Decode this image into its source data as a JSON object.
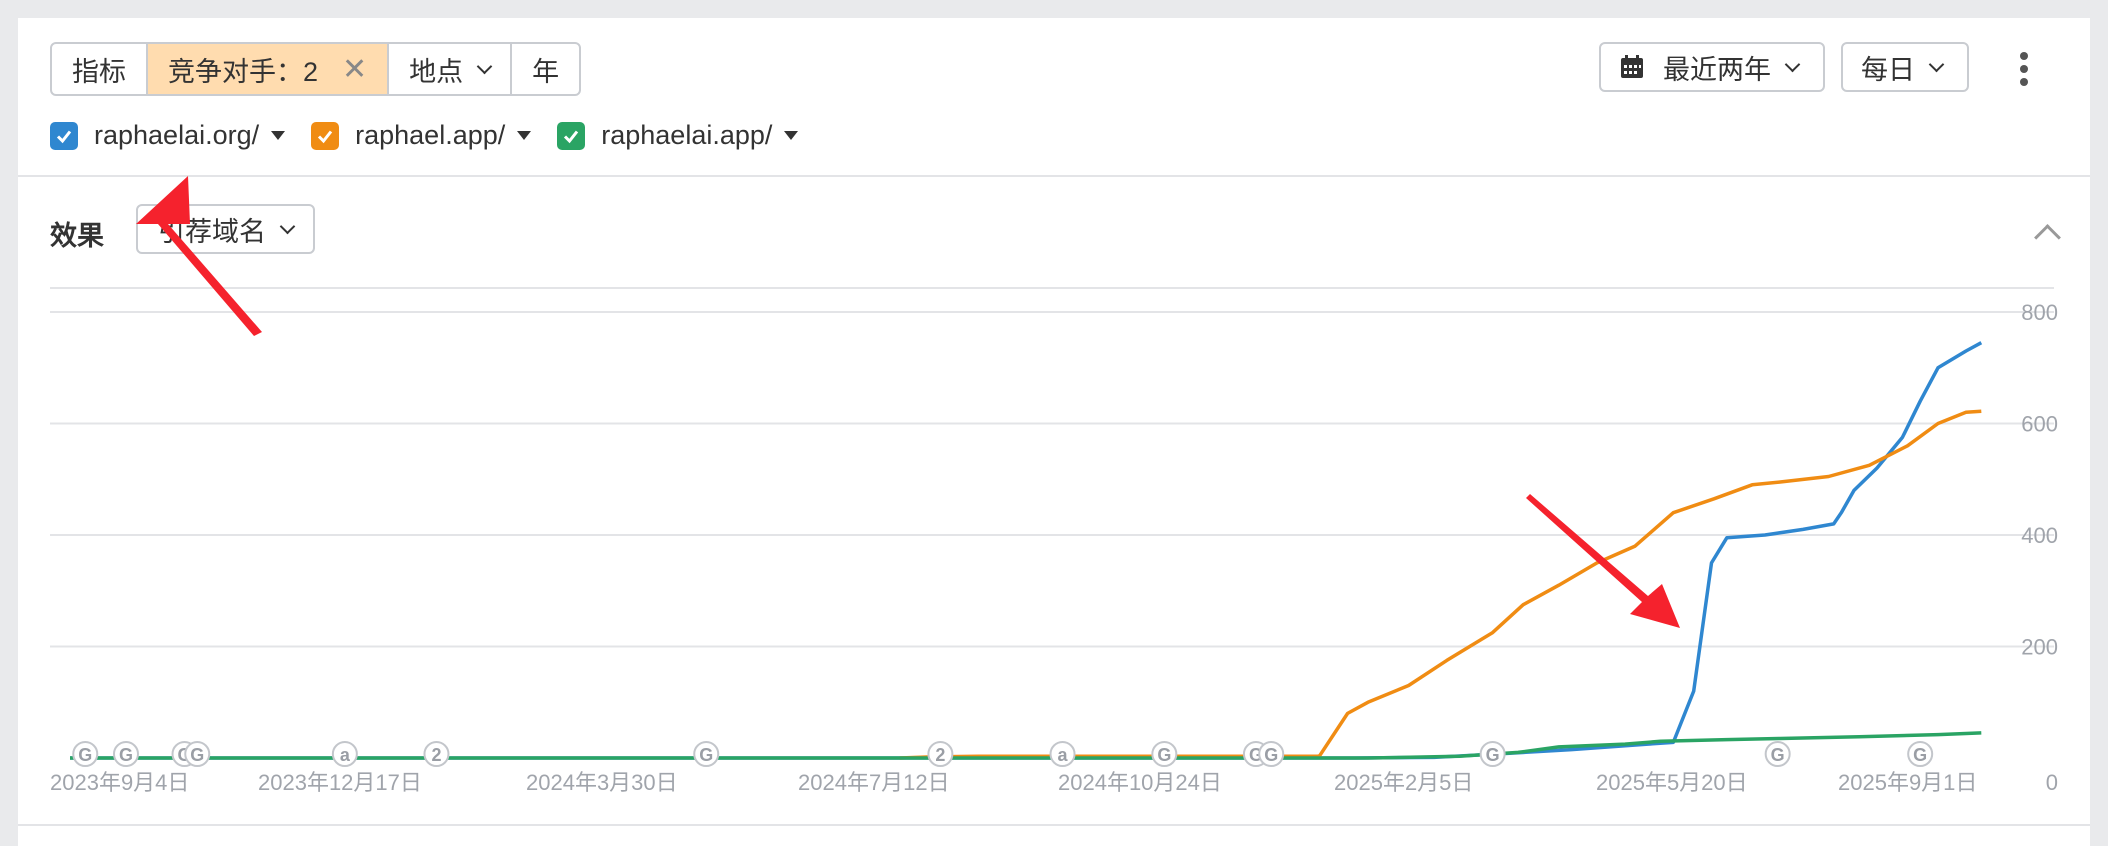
{
  "toolbar": {
    "metrics_label": "指标",
    "competitors_label": "竞争对手：2",
    "close_symbol": "✕",
    "location_label": "地点",
    "year_label": "年",
    "range_label": "最近两年",
    "granularity_label": "每日"
  },
  "legend": [
    {
      "label": "raphaelai.org/",
      "color": "#2f87d0"
    },
    {
      "label": "raphael.app/",
      "color": "#f08c13"
    },
    {
      "label": "raphaelai.app/",
      "color": "#2aa464"
    }
  ],
  "section": {
    "title": "效果",
    "dropdown_label": "引荐域名"
  },
  "colors": {
    "active_segment": "#ffdcaf",
    "arrow": "#f5222d"
  },
  "chart_data": {
    "type": "line",
    "title": "",
    "xlabel": "",
    "ylabel": "",
    "x_ticks": [
      "2023年9月4日",
      "2023年12月17日",
      "2024年3月30日",
      "2024年7月12日",
      "2024年10月24日",
      "2025年2月5日",
      "2025年5月20日",
      "2025年9月1日"
    ],
    "x_range": [
      "2023-08-29",
      "2025-09-01"
    ],
    "ylim": [
      0,
      800
    ],
    "y_ticks": [
      0,
      200,
      400,
      600,
      800
    ],
    "y_axis_position": "right",
    "grid": true,
    "series": [
      {
        "name": "raphaelai.org/",
        "color": "#2f87d0",
        "points": [
          [
            "2023-08-29",
            0
          ],
          [
            "2025-01-15",
            0
          ],
          [
            "2025-02-15",
            1
          ],
          [
            "2025-03-15",
            8
          ],
          [
            "2025-04-10",
            15
          ],
          [
            "2025-05-10",
            25
          ],
          [
            "2025-05-20",
            28
          ],
          [
            "2025-05-28",
            120
          ],
          [
            "2025-06-04",
            350
          ],
          [
            "2025-06-10",
            395
          ],
          [
            "2025-06-25",
            400
          ],
          [
            "2025-07-10",
            410
          ],
          [
            "2025-07-22",
            420
          ],
          [
            "2025-07-25",
            440
          ],
          [
            "2025-07-30",
            480
          ],
          [
            "2025-08-08",
            520
          ],
          [
            "2025-08-18",
            575
          ],
          [
            "2025-08-25",
            640
          ],
          [
            "2025-09-01",
            700
          ],
          [
            "2025-09-12",
            730
          ],
          [
            "2025-09-18",
            745
          ]
        ]
      },
      {
        "name": "raphael.app/",
        "color": "#f08c13",
        "points": [
          [
            "2024-07-20",
            0
          ],
          [
            "2024-08-01",
            2
          ],
          [
            "2024-08-20",
            3
          ],
          [
            "2024-12-31",
            3
          ],
          [
            "2025-01-01",
            4
          ],
          [
            "2025-01-12",
            80
          ],
          [
            "2025-01-20",
            100
          ],
          [
            "2025-02-05",
            130
          ],
          [
            "2025-02-20",
            175
          ],
          [
            "2025-03-10",
            225
          ],
          [
            "2025-03-22",
            275
          ],
          [
            "2025-04-05",
            310
          ],
          [
            "2025-04-20",
            350
          ],
          [
            "2025-05-05",
            380
          ],
          [
            "2025-05-20",
            440
          ],
          [
            "2025-06-05",
            465
          ],
          [
            "2025-06-20",
            490
          ],
          [
            "2025-07-01",
            495
          ],
          [
            "2025-07-20",
            505
          ],
          [
            "2025-08-05",
            525
          ],
          [
            "2025-08-20",
            560
          ],
          [
            "2025-09-01",
            600
          ],
          [
            "2025-09-12",
            620
          ],
          [
            "2025-09-18",
            622
          ]
        ]
      },
      {
        "name": "raphaelai.app/",
        "color": "#2aa464",
        "points": [
          [
            "2023-08-29",
            0
          ],
          [
            "2025-01-20",
            0
          ],
          [
            "2025-02-25",
            3
          ],
          [
            "2025-03-20",
            10
          ],
          [
            "2025-04-05",
            20
          ],
          [
            "2025-05-01",
            25
          ],
          [
            "2025-05-15",
            30
          ],
          [
            "2025-06-10",
            33
          ],
          [
            "2025-07-01",
            35
          ],
          [
            "2025-08-01",
            38
          ],
          [
            "2025-09-01",
            42
          ],
          [
            "2025-09-18",
            45
          ]
        ]
      }
    ],
    "annotations": [
      {
        "date": "2023-09-04",
        "label": "G"
      },
      {
        "date": "2023-09-20",
        "label": "G"
      },
      {
        "date": "2023-10-13",
        "label": "G"
      },
      {
        "date": "2023-10-18",
        "label": "G"
      },
      {
        "date": "2023-12-15",
        "label": "a"
      },
      {
        "date": "2024-01-20",
        "label": "2"
      },
      {
        "date": "2024-05-05",
        "label": "G"
      },
      {
        "date": "2024-08-05",
        "label": "2"
      },
      {
        "date": "2024-09-22",
        "label": "a"
      },
      {
        "date": "2024-11-01",
        "label": "G"
      },
      {
        "date": "2024-12-07",
        "label": "G"
      },
      {
        "date": "2024-12-13",
        "label": "G"
      },
      {
        "date": "2025-03-10",
        "label": "G"
      },
      {
        "date": "2025-06-30",
        "label": "G"
      },
      {
        "date": "2025-08-25",
        "label": "G"
      }
    ]
  }
}
